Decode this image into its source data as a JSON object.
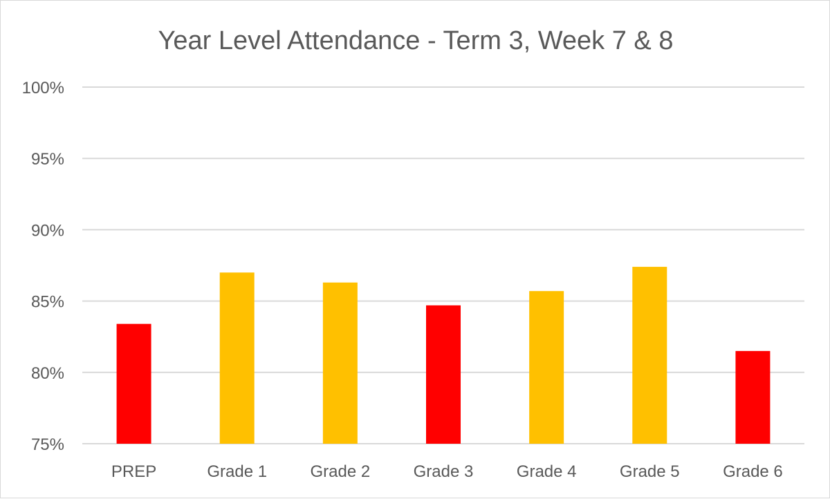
{
  "chart_data": {
    "type": "bar",
    "title": "Year Level Attendance - Term 3, Week 7 & 8",
    "xlabel": "",
    "ylabel": "",
    "categories": [
      "PREP",
      "Grade 1",
      "Grade 2",
      "Grade 3",
      "Grade 4",
      "Grade 5",
      "Grade 6"
    ],
    "values": [
      83.4,
      87.0,
      86.3,
      84.7,
      85.7,
      87.4,
      81.5
    ],
    "bar_colors": [
      "#FF0000",
      "#FFC000",
      "#FFC000",
      "#FF0000",
      "#FFC000",
      "#FFC000",
      "#FF0000"
    ],
    "ylim": [
      75,
      100
    ],
    "yticks": [
      75,
      80,
      85,
      90,
      95,
      100
    ],
    "ytick_labels": [
      "75%",
      "80%",
      "85%",
      "90%",
      "95%",
      "100%"
    ],
    "grid": true,
    "legend": "none"
  }
}
